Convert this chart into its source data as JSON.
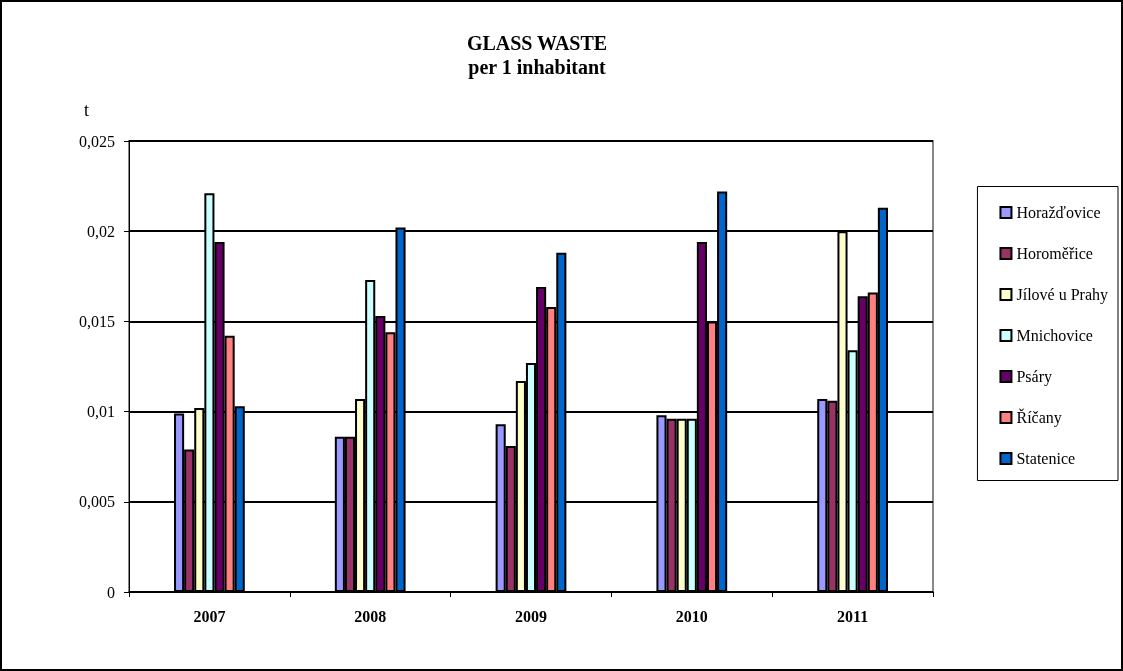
{
  "chart_data": {
    "type": "bar",
    "title": "GLASS WASTE",
    "subtitle": "per 1 inhabitant",
    "ylabel": "t",
    "categories": [
      "2007",
      "2008",
      "2009",
      "2010",
      "2011"
    ],
    "series": [
      {
        "name": "Horažďovice",
        "color": "#9999ff",
        "values": [
          0.0099,
          0.0086,
          0.0093,
          0.0098,
          0.0107
        ]
      },
      {
        "name": "Horoměřice",
        "color": "#993366",
        "values": [
          0.0079,
          0.0086,
          0.0081,
          0.0096,
          0.0106
        ]
      },
      {
        "name": "Jílové u Prahy",
        "color": "#ffffcc",
        "values": [
          0.0102,
          0.0107,
          0.0117,
          0.0096,
          0.02
        ]
      },
      {
        "name": "Mnichovice",
        "color": "#ccffff",
        "values": [
          0.0221,
          0.0173,
          0.0127,
          0.0096,
          0.0134
        ]
      },
      {
        "name": "Psáry",
        "color": "#660066",
        "values": [
          0.0194,
          0.0153,
          0.0169,
          0.0194,
          0.0164
        ]
      },
      {
        "name": "Říčany",
        "color": "#ff8080",
        "values": [
          0.0142,
          0.0144,
          0.0158,
          0.015,
          0.0166
        ]
      },
      {
        "name": "Statenice",
        "color": "#0066cc",
        "values": [
          0.0103,
          0.0202,
          0.0188,
          0.0222,
          0.0213
        ]
      }
    ],
    "ylim": [
      0,
      0.025
    ],
    "yticks": [
      {
        "value": 0,
        "label": "0"
      },
      {
        "value": 0.005,
        "label": "0,005"
      },
      {
        "value": 0.01,
        "label": "0,01"
      },
      {
        "value": 0.015,
        "label": "0,015"
      },
      {
        "value": 0.02,
        "label": "0,02"
      },
      {
        "value": 0.025,
        "label": "0,025"
      }
    ],
    "grid": "y",
    "legend": "right"
  }
}
